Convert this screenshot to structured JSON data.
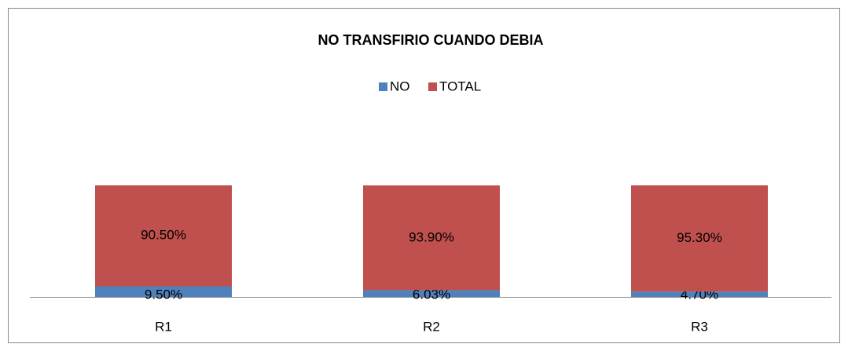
{
  "chart_data": {
    "type": "stacked_bar",
    "title": "NO TRANSFIRIO CUANDO DEBIA",
    "categories": [
      "R1",
      "R2",
      "R3"
    ],
    "series": [
      {
        "name": "NO",
        "color": "#4f81bd",
        "values": [
          9.5,
          6.03,
          4.7
        ],
        "value_labels": [
          "9.50%",
          "6.03%",
          "4.70%"
        ]
      },
      {
        "name": "TOTAL",
        "color": "#c0504d",
        "values": [
          90.5,
          93.9,
          95.3
        ],
        "value_labels": [
          "90.50%",
          "93.90%",
          "95.30%"
        ]
      }
    ],
    "legend": "top"
  }
}
